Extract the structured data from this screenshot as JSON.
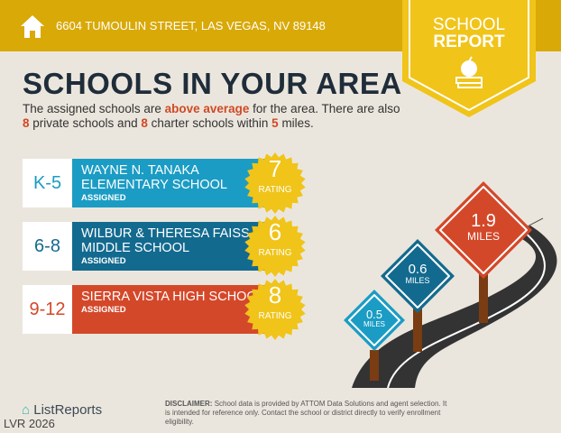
{
  "header": {
    "address": "6604 TUMOULIN STREET, LAS VEGAS, NV 89148",
    "home_icon": "home-icon"
  },
  "badge": {
    "line1": "SCHOOL",
    "line2": "REPORT",
    "icon": "apple-on-books-icon",
    "color": "#f0c419"
  },
  "title": "SCHOOLS IN YOUR AREA",
  "intro": {
    "p1": "The assigned schools are ",
    "highlight": "above average",
    "p2": " for the area. There are also ",
    "private_count": "8",
    "p3": " private schools and ",
    "charter_count": "8",
    "p4": " charter schools within ",
    "radius": "5",
    "p5": " miles."
  },
  "schools": [
    {
      "grade": "K-5",
      "name": "WAYNE N. TANAKA ELEMENTARY SCHOOL",
      "status": "ASSIGNED",
      "rating": "7",
      "rating_label": "RATING",
      "color": "#1b9cc4",
      "distance": "0.5",
      "distance_unit": "MILES"
    },
    {
      "grade": "6-8",
      "name": "WILBUR & THERESA FAISS MIDDLE SCHOOL",
      "status": "ASSIGNED",
      "rating": "6",
      "rating_label": "RATING",
      "color": "#136a8f",
      "distance": "0.6",
      "distance_unit": "MILES"
    },
    {
      "grade": "9-12",
      "name": "SIERRA VISTA HIGH SCHOOL",
      "status": "ASSIGNED",
      "rating": "8",
      "rating_label": "RATING",
      "color": "#d4482a",
      "distance": "1.9",
      "distance_unit": "MILES"
    }
  ],
  "footer": {
    "logo": "ListReports",
    "watermark": "LVR 2026",
    "disclaimer_label": "DISCLAIMER:",
    "disclaimer": "School data is provided by ATTOM Data Solutions and agent selection. It is intended for reference only. Contact the school or district directly to verify enrollment eligibility."
  }
}
